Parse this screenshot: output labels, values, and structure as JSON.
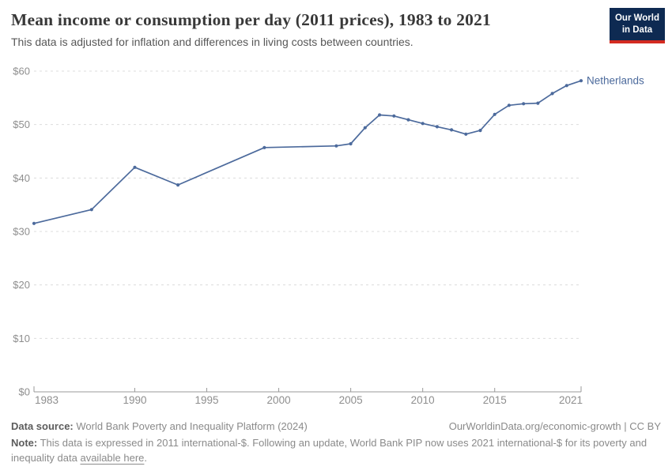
{
  "header": {
    "title": "Mean income or consumption per day (2011 prices), 1983 to 2021",
    "subtitle": "This data is adjusted for inflation and differences in living costs between countries.",
    "logo_line1": "Our World",
    "logo_line2": "in Data"
  },
  "chart_data": {
    "type": "line",
    "title": "Mean income or consumption per day (2011 prices), 1983 to 2021",
    "xlabel": "",
    "ylabel": "",
    "xlim": [
      1983,
      2021
    ],
    "ylim": [
      0,
      60
    ],
    "grid": "horizontal-dashed",
    "legend_position": "end-of-line-label",
    "x_ticks": [
      1983,
      1990,
      1995,
      2000,
      2005,
      2010,
      2015,
      2021
    ],
    "y_ticks": [
      0,
      10,
      20,
      30,
      40,
      50,
      60
    ],
    "y_tick_prefix": "$",
    "series": [
      {
        "name": "Netherlands",
        "color": "#4C6A9C",
        "x": [
          1983,
          1987,
          1990,
          1993,
          1999,
          2004,
          2005,
          2006,
          2007,
          2008,
          2009,
          2010,
          2011,
          2012,
          2013,
          2014,
          2015,
          2016,
          2017,
          2018,
          2019,
          2020,
          2021
        ],
        "y": [
          31.5,
          34.1,
          42.0,
          38.7,
          45.7,
          46.0,
          46.4,
          49.4,
          51.8,
          51.6,
          50.9,
          50.2,
          49.6,
          49.0,
          48.2,
          48.9,
          51.9,
          53.6,
          53.9,
          54.0,
          55.8,
          57.3,
          58.2
        ]
      }
    ]
  },
  "colors": {
    "line": "#4C6A9C",
    "grid": "#dcdcdc",
    "axis": "#999999",
    "tick_text": "#8e8e8e",
    "title_text": "#383838",
    "logo_bg": "#0e2a52",
    "logo_stripe": "#d42b21"
  },
  "footer": {
    "data_source_label": "Data source:",
    "data_source_value": "World Bank Poverty and Inequality Platform (2024)",
    "attribution": "OurWorldinData.org/economic-growth | CC BY",
    "note_label": "Note:",
    "note_before_link": "This data is expressed in 2011 international-$. Following an update, World Bank PIP now uses 2021 international-$ for its poverty and inequality data",
    "note_link": "available here",
    "note_after_link": "."
  }
}
